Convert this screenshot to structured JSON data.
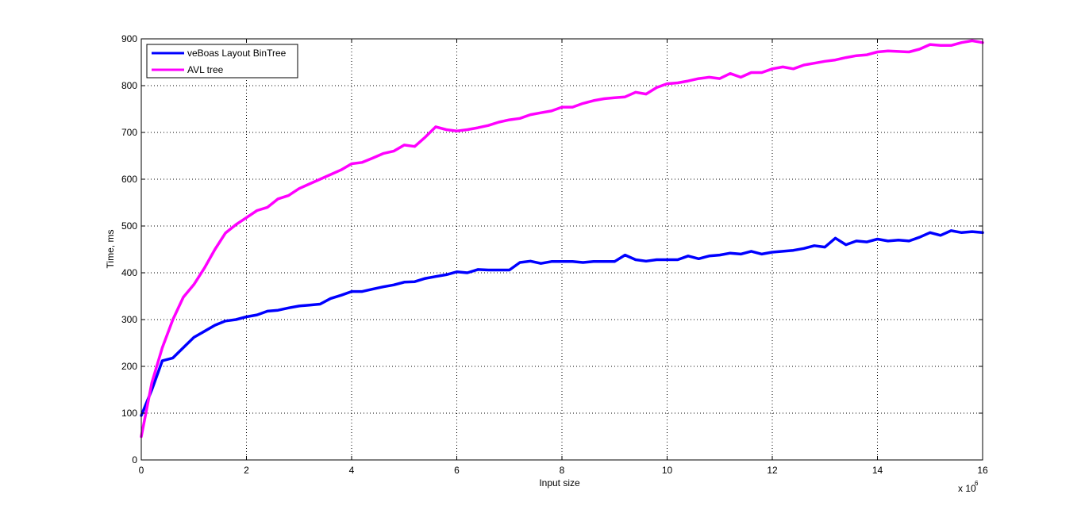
{
  "chart_data": {
    "type": "line",
    "title": "",
    "xlabel": "Input size",
    "ylabel": "Time, ms",
    "x_multiplier_label": "x 10",
    "x_multiplier_exponent": "6",
    "xlim": [
      0,
      16000000
    ],
    "ylim": [
      0,
      900
    ],
    "xticks": [
      0,
      2,
      4,
      6,
      8,
      10,
      12,
      14,
      16
    ],
    "xtick_labels": [
      "0",
      "2",
      "4",
      "6",
      "8",
      "10",
      "12",
      "14",
      "16"
    ],
    "yticks": [
      0,
      100,
      200,
      300,
      400,
      500,
      600,
      700,
      800,
      900
    ],
    "ytick_labels": [
      "0",
      "100",
      "200",
      "300",
      "400",
      "500",
      "600",
      "700",
      "800",
      "900"
    ],
    "grid": true,
    "legend_position": "top-left",
    "x": [
      0,
      200000,
      400000,
      600000,
      800000,
      1000000,
      1200000,
      1400000,
      1600000,
      1800000,
      2000000,
      2200000,
      2400000,
      2600000,
      2800000,
      3000000,
      3200000,
      3400000,
      3600000,
      3800000,
      4000000,
      4200000,
      4400000,
      4600000,
      4800000,
      5000000,
      5200000,
      5400000,
      5600000,
      5800000,
      6000000,
      6200000,
      6400000,
      6600000,
      6800000,
      7000000,
      7200000,
      7400000,
      7600000,
      7800000,
      8000000,
      8200000,
      8400000,
      8600000,
      8800000,
      9000000,
      9200000,
      9400000,
      9600000,
      9800000,
      10000000,
      10200000,
      10400000,
      10600000,
      10800000,
      11000000,
      11200000,
      11400000,
      11600000,
      11800000,
      12000000,
      12200000,
      12400000,
      12600000,
      12800000,
      13000000,
      13200000,
      13400000,
      13600000,
      13800000,
      14000000,
      14200000,
      14400000,
      14600000,
      14800000,
      15000000,
      15200000,
      15400000,
      15600000,
      15800000,
      16000000
    ],
    "series": [
      {
        "name": "veBoas Layout BinTree",
        "color": "#0000ff",
        "values": [
          95,
          150,
          212,
          218,
          240,
          262,
          275,
          288,
          297,
          300,
          306,
          310,
          318,
          320,
          325,
          329,
          331,
          333,
          345,
          352,
          360,
          360,
          365,
          370,
          374,
          380,
          381,
          388,
          392,
          396,
          402,
          400,
          407,
          406,
          406,
          406,
          422,
          425,
          420,
          424,
          424,
          424,
          422,
          424,
          424,
          424,
          438,
          428,
          425,
          428,
          428,
          428,
          436,
          430,
          436,
          438,
          442,
          440,
          446,
          440,
          444,
          446,
          448,
          452,
          458,
          455,
          474,
          460,
          468,
          466,
          472,
          468,
          470,
          468,
          476,
          486,
          480,
          490,
          486,
          488,
          486
        ]
      },
      {
        "name": "AVL tree",
        "color": "#ff00ff",
        "values": [
          50,
          165,
          240,
          300,
          348,
          375,
          410,
          450,
          485,
          503,
          518,
          533,
          540,
          558,
          565,
          580,
          590,
          600,
          610,
          620,
          633,
          636,
          645,
          655,
          660,
          673,
          670,
          690,
          712,
          706,
          703,
          706,
          710,
          715,
          722,
          727,
          730,
          738,
          742,
          746,
          754,
          754,
          762,
          768,
          772,
          774,
          776,
          786,
          782,
          796,
          804,
          806,
          810,
          815,
          818,
          815,
          826,
          818,
          828,
          828,
          836,
          840,
          836,
          844,
          848,
          852,
          855,
          860,
          864,
          866,
          872,
          874,
          873,
          872,
          878,
          888,
          886,
          886,
          892,
          896,
          892
        ]
      }
    ]
  }
}
